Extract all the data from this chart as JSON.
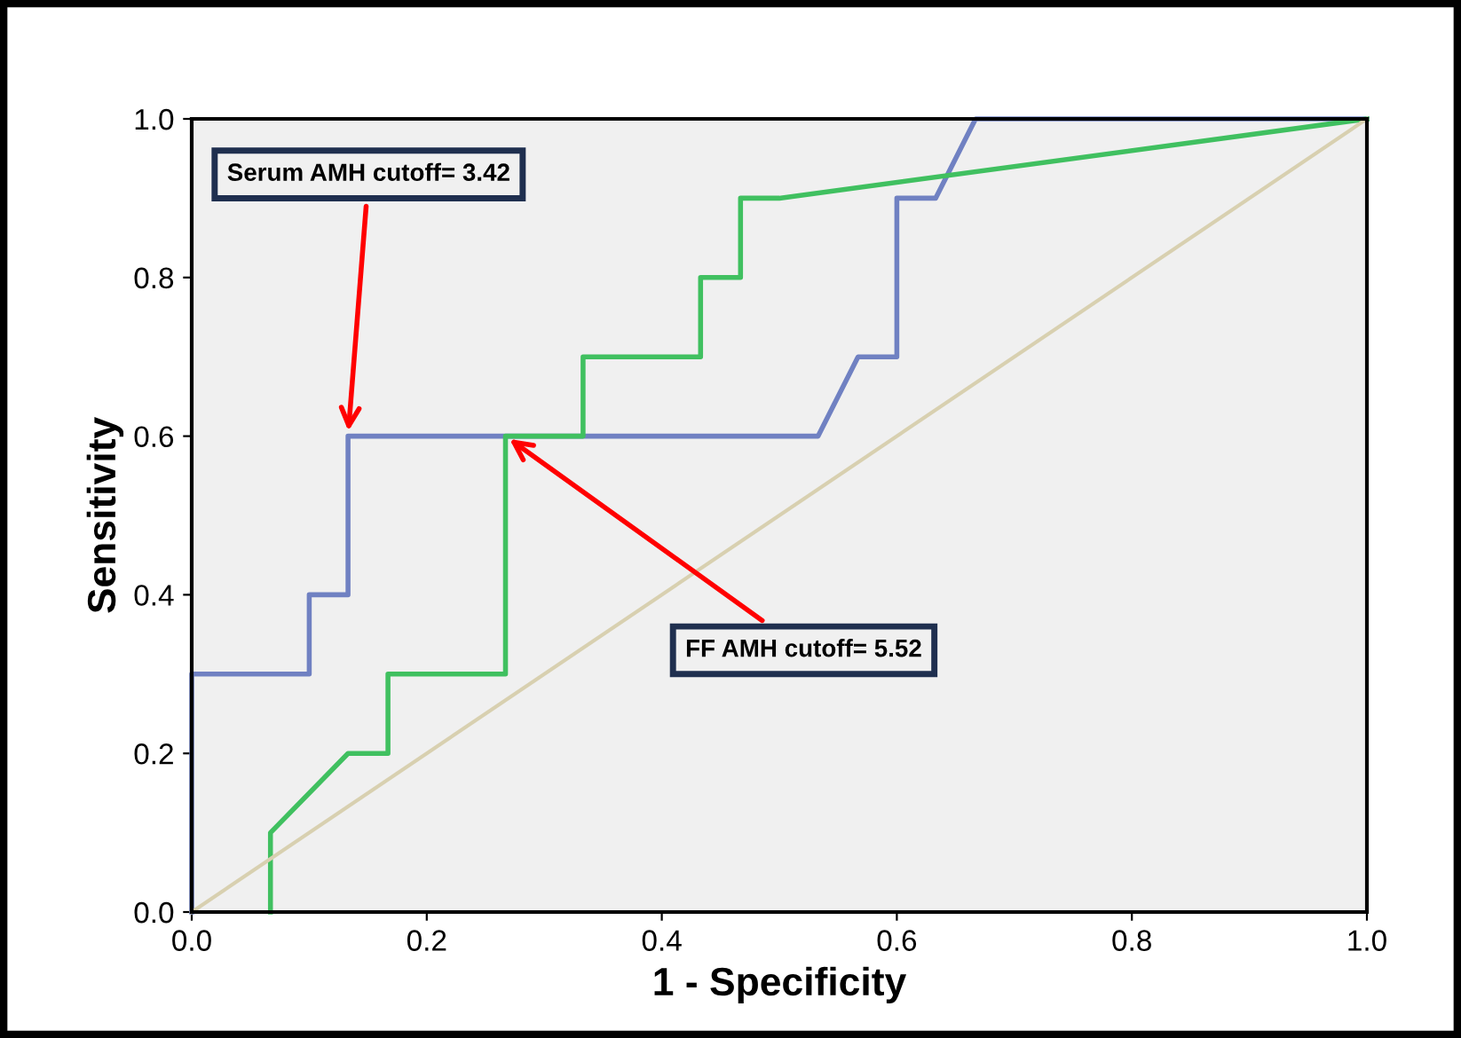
{
  "chart_data": {
    "type": "line",
    "xlabel": "1 - Specificity",
    "ylabel": "Sensitivity",
    "xlim": [
      0,
      1
    ],
    "ylim": [
      0,
      1
    ],
    "xticks": [
      {
        "value": 0,
        "label": "0.0"
      },
      0.2,
      0.4,
      0.6,
      0.8,
      {
        "value": 1,
        "label": "1.0"
      }
    ],
    "yticks": [
      {
        "value": 0,
        "label": "0.0"
      },
      0.2,
      0.4,
      0.6,
      0.8,
      {
        "value": 1,
        "label": "1.0"
      }
    ],
    "grid": false,
    "legend": false,
    "marker": "none",
    "line_style": "solid",
    "series": [
      {
        "color": "#7081c2",
        "x": [
          0,
          0,
          0.1,
          0.1,
          0.133,
          0.133,
          0.533,
          0.567,
          0.6,
          0.6,
          0.633,
          0.667,
          1
        ],
        "values": [
          0,
          0.3,
          0.3,
          0.4,
          0.4,
          0.6,
          0.6,
          0.7,
          0.7,
          0.9,
          0.9,
          1,
          1
        ]
      },
      {
        "color": "#40c060",
        "x": [
          0.067,
          0.067,
          0.133,
          0.167,
          0.167,
          0.267,
          0.267,
          0.333,
          0.333,
          0.433,
          0.433,
          0.467,
          0.467,
          0.5,
          1
        ],
        "values": [
          0,
          0.1,
          0.2,
          0.2,
          0.3,
          0.3,
          0.6,
          0.6,
          0.7,
          0.7,
          0.8,
          0.8,
          0.9,
          0.9,
          1
        ]
      },
      {
        "color": "#d8d0b0",
        "x": [
          0,
          1
        ],
        "values": [
          0,
          1
        ]
      }
    ],
    "annotations": [
      {
        "text": "Serum AMH cutoff= 3.42",
        "x": 0.133,
        "y": 0.6
      },
      {
        "text": "FF AMH cutoff= 5.52",
        "x": 0.267,
        "y": 0.6
      }
    ]
  }
}
